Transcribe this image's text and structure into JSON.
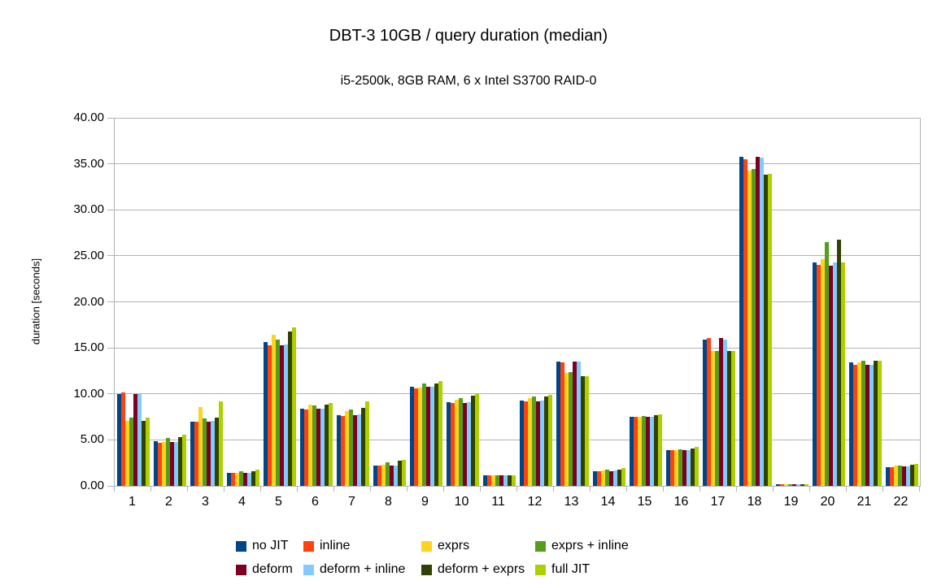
{
  "chart_data": {
    "type": "bar",
    "title": "DBT-3 10GB / query duration (median)",
    "subtitle": "i5-2500k, 8GB RAM, 6 x Intel S3700 RAID-0",
    "xlabel": "",
    "ylabel": "duration [seconds]",
    "ylim": [
      0,
      40
    ],
    "ytick_step": 5,
    "ytick_labels": [
      "0.00",
      "5.00",
      "10.00",
      "15.00",
      "20.00",
      "25.00",
      "30.00",
      "35.00",
      "40.00"
    ],
    "grid": true,
    "legend_position": "bottom",
    "legend_columns": 4,
    "categories": [
      "1",
      "2",
      "3",
      "4",
      "5",
      "6",
      "7",
      "8",
      "9",
      "10",
      "11",
      "12",
      "13",
      "14",
      "15",
      "16",
      "17",
      "18",
      "19",
      "20",
      "21",
      "22"
    ],
    "series": [
      {
        "name": "no JIT",
        "color": "#004586",
        "values": [
          10.0,
          4.9,
          7.0,
          1.4,
          15.6,
          8.4,
          7.7,
          2.2,
          10.8,
          9.1,
          1.15,
          9.3,
          13.5,
          1.6,
          7.5,
          3.9,
          15.9,
          35.8,
          0.2,
          24.3,
          13.4,
          2.0
        ]
      },
      {
        "name": "inline",
        "color": "#ff420e",
        "values": [
          10.15,
          4.7,
          7.0,
          1.4,
          15.3,
          8.3,
          7.6,
          2.2,
          10.6,
          9.0,
          1.15,
          9.2,
          13.4,
          1.6,
          7.5,
          3.9,
          16.1,
          35.5,
          0.2,
          24.0,
          13.2,
          2.0
        ]
      },
      {
        "name": "exprs",
        "color": "#ffd320",
        "values": [
          7.1,
          4.75,
          8.6,
          1.4,
          16.4,
          8.8,
          8.1,
          2.3,
          10.7,
          9.4,
          1.15,
          9.5,
          12.3,
          1.65,
          7.5,
          3.9,
          14.7,
          34.3,
          0.2,
          24.6,
          13.4,
          2.2
        ]
      },
      {
        "name": "exprs + inline",
        "color": "#579d1c",
        "values": [
          7.4,
          5.2,
          7.3,
          1.55,
          15.9,
          8.7,
          8.3,
          2.6,
          11.1,
          9.5,
          1.15,
          9.7,
          12.4,
          1.8,
          7.6,
          4.0,
          14.7,
          34.4,
          0.2,
          26.5,
          13.6,
          2.2
        ]
      },
      {
        "name": "deform",
        "color": "#7e0021",
        "values": [
          10.0,
          4.75,
          7.0,
          1.4,
          15.3,
          8.4,
          7.7,
          2.2,
          10.8,
          9.0,
          1.15,
          9.2,
          13.5,
          1.6,
          7.5,
          3.9,
          16.1,
          35.8,
          0.2,
          23.9,
          13.2,
          2.1
        ]
      },
      {
        "name": "deform + inline",
        "color": "#83caff",
        "values": [
          10.0,
          4.8,
          7.1,
          1.4,
          15.4,
          8.4,
          7.8,
          2.25,
          10.8,
          9.1,
          1.15,
          9.3,
          13.5,
          1.65,
          7.5,
          3.9,
          15.9,
          35.7,
          0.2,
          24.25,
          13.2,
          2.1
        ]
      },
      {
        "name": "deform + exprs",
        "color": "#314004",
        "values": [
          7.1,
          5.3,
          7.4,
          1.6,
          16.8,
          8.8,
          8.5,
          2.7,
          11.15,
          9.8,
          1.15,
          9.7,
          11.9,
          1.8,
          7.7,
          4.1,
          14.7,
          33.8,
          0.2,
          26.8,
          13.6,
          2.3
        ]
      },
      {
        "name": "full JIT",
        "color": "#aecf00",
        "values": [
          7.4,
          5.55,
          9.2,
          1.75,
          17.2,
          9.0,
          9.2,
          2.8,
          11.4,
          10.1,
          1.15,
          9.9,
          11.9,
          1.9,
          7.8,
          4.2,
          14.7,
          33.9,
          0.2,
          24.25,
          13.6,
          2.35
        ]
      }
    ]
  }
}
